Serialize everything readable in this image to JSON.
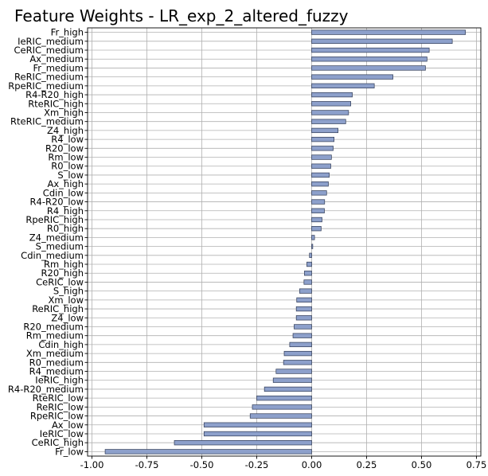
{
  "chart_data": {
    "type": "bar",
    "orientation": "horizontal",
    "title": "Feature Weights - LR_exp_2_altered_fuzzy",
    "xlabel": "",
    "ylabel": "",
    "xlim": [
      -1.02,
      0.77
    ],
    "x_ticks": [
      "-1.00",
      "-0.75",
      "-0.50",
      "-0.25",
      "0.00",
      "0.25",
      "0.50",
      "0.75"
    ],
    "x_tick_values": [
      -1.0,
      -0.75,
      -0.5,
      -0.25,
      0.0,
      0.25,
      0.5,
      0.75
    ],
    "grid": true,
    "bar_color": "#8da0cb",
    "categories": [
      "Fr_high",
      "IeRIC_medium",
      "CeRIC_medium",
      "Ax_medium",
      "Fr_medium",
      "ReRIC_medium",
      "RpeRIC_medium",
      "R4-R20_high",
      "RteRIC_high",
      "Xm_high",
      "RteRIC_medium",
      "Z4_high",
      "R4_low",
      "R20_low",
      "Rm_low",
      "R0_low",
      "S_low",
      "Ax_high",
      "Cdin_low",
      "R4-R20_low",
      "R4_high",
      "RpeRIC_high",
      "R0_high",
      "Z4_medium",
      "S_medium",
      "Cdin_medium",
      "Rm_high",
      "R20_high",
      "CeRIC_low",
      "S_high",
      "Xm_low",
      "ReRIC_high",
      "Z4_low",
      "R20_medium",
      "Rm_medium",
      "Cdin_high",
      "Xm_medium",
      "R0_medium",
      "R4_medium",
      "IeRIC_high",
      "R4-R20_medium",
      "RteRIC_low",
      "ReRIC_low",
      "RpeRIC_low",
      "Ax_low",
      "IeRIC_low",
      "CeRIC_high",
      "Fr_low"
    ],
    "values": [
      0.7,
      0.64,
      0.535,
      0.525,
      0.518,
      0.37,
      0.285,
      0.185,
      0.178,
      0.168,
      0.155,
      0.12,
      0.102,
      0.098,
      0.09,
      0.087,
      0.08,
      0.076,
      0.068,
      0.059,
      0.058,
      0.047,
      0.043,
      0.013,
      0.005,
      -0.01,
      -0.022,
      -0.033,
      -0.035,
      -0.055,
      -0.068,
      -0.07,
      -0.07,
      -0.08,
      -0.085,
      -0.1,
      -0.125,
      -0.128,
      -0.162,
      -0.175,
      -0.215,
      -0.25,
      -0.27,
      -0.28,
      -0.49,
      -0.49,
      -0.625,
      -0.94
    ]
  }
}
